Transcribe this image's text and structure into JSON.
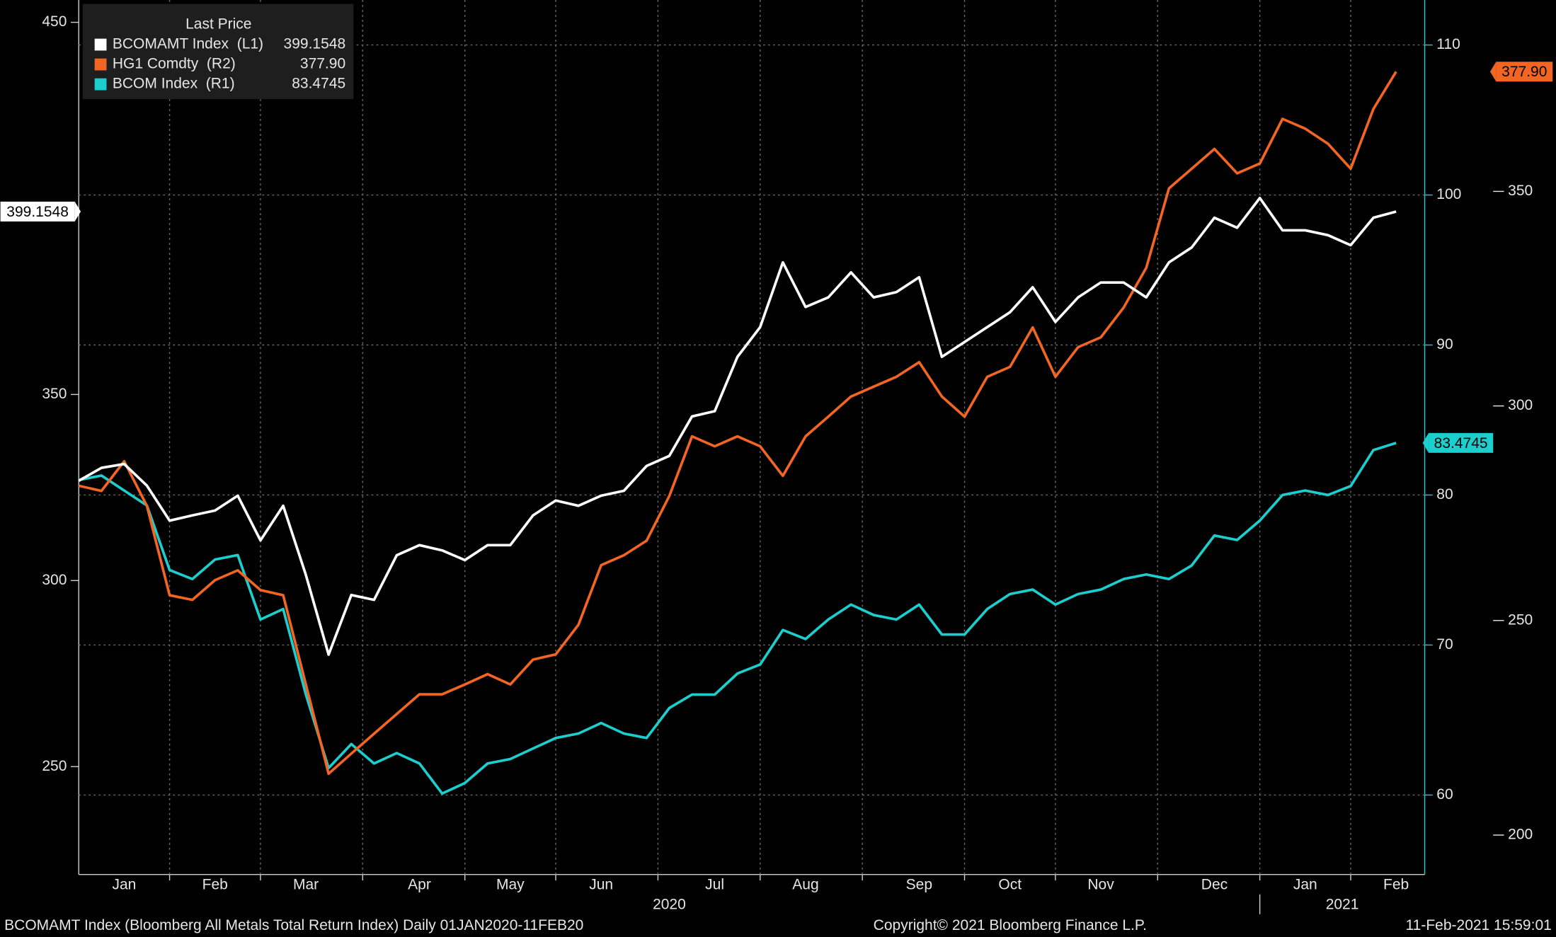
{
  "chart_data": {
    "type": "line",
    "legend_title": "Last Price",
    "categories": [
      null,
      null,
      "Jan",
      null,
      null,
      null,
      "Feb",
      null,
      null,
      null,
      "Mar",
      null,
      null,
      null,
      null,
      "Apr",
      null,
      null,
      null,
      "May",
      null,
      null,
      null,
      "Jun",
      null,
      null,
      null,
      null,
      "Jul",
      null,
      null,
      null,
      "Aug",
      null,
      null,
      null,
      null,
      "Sep",
      null,
      null,
      null,
      "Oct",
      null,
      null,
      null,
      "Nov",
      null,
      null,
      null,
      null,
      "Dec",
      null,
      null,
      null,
      "Jan",
      null,
      null,
      null,
      "Feb"
    ],
    "x_groups": [
      "2020",
      "2021"
    ],
    "ylim": [
      221,
      456
    ],
    "yticks": [
      250,
      300,
      350,
      450
    ],
    "y2lim": [
      54.7,
      113.0
    ],
    "y2ticks": [
      60,
      70,
      80,
      90,
      100,
      110
    ],
    "y3lim": [
      190.8,
      394.6
    ],
    "y3ticks": [
      200,
      250,
      300,
      350
    ],
    "grid": true,
    "series": [
      {
        "name": "BCOMAMT Index  (L1)",
        "color": "#ffffff",
        "axis": "y",
        "last_label": "399.1548",
        "values": [
          326.8,
          330.3,
          331.3,
          325.5,
          316.1,
          317.5,
          318.8,
          322.8,
          310.8,
          320.1,
          301.5,
          280.1,
          296.1,
          294.8,
          306.8,
          309.5,
          308.1,
          305.5,
          309.5,
          309.5,
          317.5,
          321.5,
          320.1,
          322.8,
          324.1,
          330.8,
          333.5,
          344.1,
          345.5,
          360.1,
          368.1,
          385.5,
          373.5,
          376.1,
          382.8,
          376.1,
          377.5,
          381.5,
          360.1,
          364.1,
          368.1,
          372.1,
          378.8,
          369.5,
          376.1,
          380.1,
          380.1,
          376.1,
          385.5,
          389.5,
          397.5,
          394.8,
          402.8,
          394.1,
          394.1,
          392.8,
          390.1,
          397.5,
          399.1548
        ]
      },
      {
        "name": "HG1 Comdty  (R2)",
        "color": "#f26522",
        "axis": "y3",
        "last_label": "377.90",
        "values": [
          281.4,
          280.2,
          287.1,
          276.7,
          255.9,
          254.8,
          259.4,
          261.7,
          257.1,
          255.9,
          235.1,
          214.3,
          219.0,
          223.6,
          228.2,
          232.8,
          232.8,
          235.1,
          237.5,
          235.1,
          240.9,
          242.1,
          249.0,
          262.9,
          265.2,
          268.6,
          279.0,
          292.9,
          290.6,
          292.9,
          290.6,
          283.7,
          292.9,
          297.5,
          302.2,
          304.5,
          306.8,
          310.2,
          302.2,
          297.5,
          306.8,
          309.1,
          318.3,
          306.8,
          313.7,
          316.0,
          322.9,
          332.2,
          350.7,
          355.3,
          359.9,
          354.2,
          356.5,
          366.9,
          364.6,
          361.1,
          355.3,
          369.2,
          377.9
        ]
      },
      {
        "name": "BCOM Index  (R1)",
        "color": "#1ccfcf",
        "axis": "y2",
        "last_label": "83.4745",
        "values": [
          81.0,
          81.3,
          80.3,
          79.3,
          75.0,
          74.4,
          75.7,
          76.0,
          71.7,
          72.4,
          66.7,
          61.8,
          63.4,
          62.1,
          62.8,
          62.1,
          60.1,
          60.8,
          62.1,
          62.4,
          63.1,
          63.8,
          64.1,
          64.8,
          64.1,
          63.8,
          65.8,
          66.7,
          66.7,
          68.1,
          68.7,
          71.0,
          70.4,
          71.7,
          72.7,
          72.0,
          71.7,
          72.7,
          70.7,
          70.7,
          72.4,
          73.4,
          73.7,
          72.7,
          73.4,
          73.7,
          74.4,
          74.7,
          74.4,
          75.3,
          77.3,
          77.0,
          78.3,
          80.0,
          80.3,
          80.0,
          80.6,
          83.0,
          83.4745
        ]
      }
    ],
    "footer_left": "BCOMAMT Index (Bloomberg All Metals Total Return Index)  Daily 01JAN2020-11FEB20",
    "footer_center": "Copyright© 2021 Bloomberg Finance L.P.",
    "footer_right": "11-Feb-2021 15:59:01"
  }
}
